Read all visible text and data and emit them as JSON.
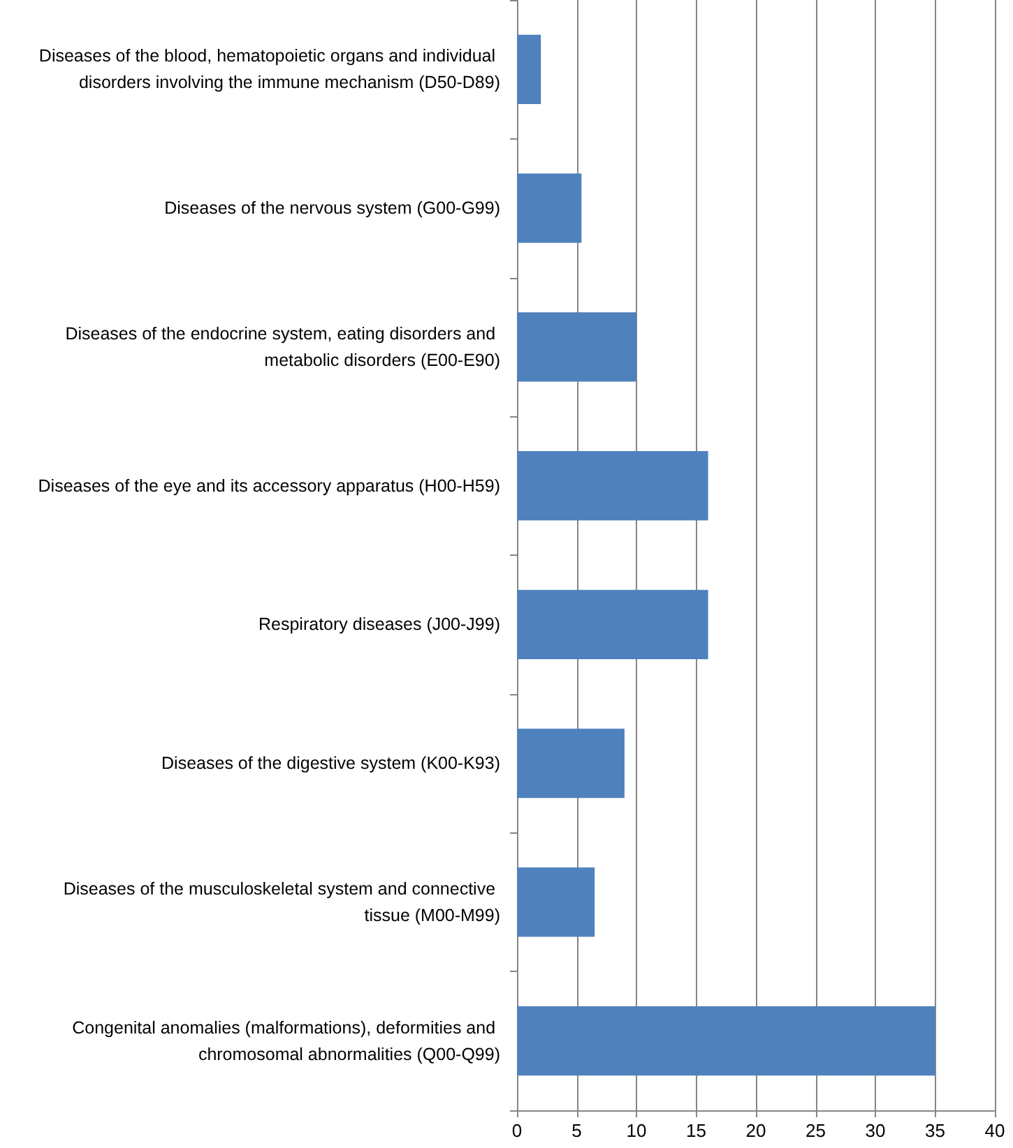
{
  "chart_data": {
    "type": "bar",
    "orientation": "horizontal",
    "categories": [
      "Diseases of the blood, hematopoietic organs and individual disorders involving the immune mechanism (D50-D89)",
      "Diseases of the nervous system (G00-G99)",
      "Diseases of the endocrine system, eating disorders and metabolic disorders (E00-E90)",
      "Diseases of the eye and its accessory apparatus (H00-H59)",
      "Respiratory diseases (J00-J99)",
      "Diseases of the digestive system (K00-K93)",
      "Diseases of the musculoskeletal system and connective tissue (M00-M99)",
      "Congenital anomalies (malformations), deformities and chromosomal abnormalities (Q00-Q99)"
    ],
    "values": [
      2,
      5.4,
      10,
      16,
      16,
      9,
      6.5,
      35
    ],
    "color": "#4f81bd",
    "xlim": [
      0,
      40
    ],
    "xticks": [
      0,
      5,
      10,
      15,
      20,
      25,
      30,
      35,
      40
    ],
    "grid": "x"
  }
}
